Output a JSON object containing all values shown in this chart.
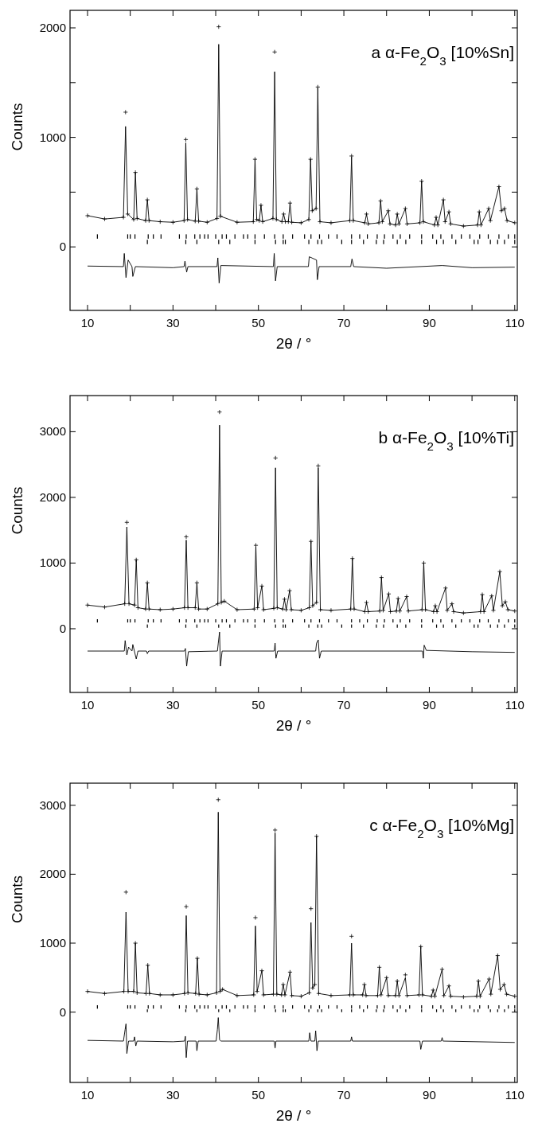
{
  "chart_data": [
    {
      "type": "line",
      "title": "a  α-Fe$_{2}$O$_{3}$ [10%Sn]",
      "xlabel": "2θ / °",
      "ylabel": "Counts",
      "xlim": [
        5.9,
        110.6
      ],
      "ylim": [
        -580,
        2160
      ],
      "xticks": [
        10,
        {
          "value": 20,
          "label": null
        },
        30,
        {
          "value": 40,
          "label": null
        },
        50,
        {
          "value": 60,
          "label": null
        },
        70,
        {
          "value": 80,
          "label": null
        },
        90,
        {
          "value": 100,
          "label": null
        },
        110
      ],
      "yticks": [
        0,
        {
          "value": 500,
          "label": null
        },
        1000,
        {
          "value": 1500,
          "label": null
        },
        2000
      ],
      "x": [
        10,
        14,
        18.4,
        18.9,
        19.4,
        20.8,
        21.2,
        21.6,
        23.6,
        24.0,
        24.4,
        27,
        30,
        32.6,
        33.0,
        33.4,
        35.2,
        35.6,
        36.0,
        38,
        40.3,
        40.7,
        41.1,
        45,
        48.8,
        49.2,
        49.6,
        50.2,
        50.6,
        51,
        53.4,
        53.8,
        54.2,
        55.5,
        55.9,
        56.3,
        57.0,
        57.4,
        57.8,
        60,
        61.8,
        62.2,
        62.6,
        63.5,
        63.9,
        64.4,
        67,
        71.4,
        71.8,
        72.2,
        74.9,
        75.3,
        75.7,
        78.2,
        78.6,
        79.0,
        80.4,
        80.8,
        82.1,
        82.5,
        82.9,
        84.4,
        84.8,
        87.8,
        88.2,
        88.6,
        91.2,
        91.6,
        92.0,
        93.3,
        93.7,
        94.6,
        95.0,
        98,
        101.3,
        101.7,
        102.1,
        103.9,
        104.3,
        106.3,
        106.9,
        107.6,
        108.2,
        110
      ],
      "series": [
        {
          "color": "#000000",
          "values": [
            285,
            255,
            270,
            1100,
            300,
            250,
            680,
            260,
            240,
            430,
            240,
            230,
            225,
            240,
            950,
            250,
            235,
            530,
            235,
            225,
            260,
            1850,
            280,
            225,
            230,
            800,
            250,
            240,
            380,
            230,
            260,
            1600,
            250,
            230,
            300,
            230,
            230,
            400,
            225,
            220,
            250,
            800,
            330,
            350,
            1450,
            230,
            220,
            240,
            820,
            240,
            220,
            300,
            210,
            220,
            420,
            230,
            330,
            210,
            200,
            300,
            210,
            350,
            210,
            220,
            600,
            230,
            200,
            270,
            200,
            430,
            230,
            320,
            210,
            190,
            200,
            320,
            200,
            350,
            240,
            550,
            330,
            350,
            240,
            220
          ]
        },
        {
          "type": "scatter",
          "color": "#000000",
          "marker": "cross",
          "values": [
            285,
            255,
            270,
            1230,
            300,
            250,
            680,
            260,
            240,
            430,
            240,
            230,
            225,
            240,
            980,
            250,
            235,
            530,
            235,
            225,
            260,
            2010,
            280,
            225,
            230,
            800,
            250,
            240,
            380,
            230,
            260,
            1780,
            250,
            230,
            300,
            230,
            230,
            400,
            225,
            220,
            250,
            800,
            330,
            350,
            1460,
            230,
            220,
            240,
            830,
            240,
            220,
            300,
            210,
            220,
            420,
            230,
            330,
            210,
            200,
            300,
            210,
            350,
            210,
            220,
            600,
            230,
            200,
            270,
            200,
            430,
            230,
            320,
            210,
            190,
            200,
            320,
            200,
            350,
            240,
            550,
            330,
            350,
            240,
            220
          ]
        },
        {
          "color": "#000000",
          "x": [
            10,
            18.4,
            18.6,
            19.0,
            19.5,
            20.4,
            20.6,
            21.2,
            30,
            32.6,
            32.8,
            33.2,
            33.5,
            40.3,
            40.5,
            40.8,
            41.2,
            53.5,
            53.7,
            54.0,
            54.4,
            61.7,
            61.9,
            63.6,
            63.8,
            64.2,
            71.6,
            71.9,
            72.3,
            80,
            93,
            100,
            110
          ],
          "values": [
            -175,
            -180,
            -60,
            -280,
            -120,
            -180,
            -270,
            -180,
            -190,
            -180,
            -130,
            -230,
            -180,
            -180,
            -100,
            -330,
            -170,
            -180,
            -60,
            -310,
            -180,
            -180,
            -90,
            -120,
            -300,
            -180,
            -180,
            -110,
            -180,
            -195,
            -170,
            -190,
            -185
          ]
        },
        {
          "type": "bar",
          "color": "#000000",
          "x": [
            12.3,
            19.4,
            20.0,
            21.1,
            24.2,
            25.4,
            27.2,
            31.5,
            33.1,
            35.1,
            36.3,
            37.4,
            38.2,
            40.0,
            41.5,
            42.5,
            44.5,
            46.5,
            47.5,
            49.2,
            51.4,
            53.8,
            55.8,
            58.0,
            60.8,
            62.3,
            64.3,
            66.4,
            68.4,
            71.8,
            73.7,
            75.5,
            77.8,
            79.5,
            81.5,
            83.2,
            85.4,
            88.2,
            90.8,
            92.7,
            95.3,
            97.5,
            99.5,
            101.8,
            103.8,
            106.3,
            108.5,
            110
          ],
          "base": [
            75,
            75,
            75,
            75,
            75,
            75,
            75,
            75,
            75,
            75,
            75,
            75,
            75,
            75,
            75,
            75,
            75,
            75,
            75,
            75,
            75,
            75,
            75,
            75,
            75,
            75,
            75,
            75,
            75,
            75,
            75,
            75,
            75,
            75,
            75,
            75,
            75,
            75,
            75,
            75,
            75,
            75,
            75,
            75,
            75,
            75,
            75,
            75
          ],
          "values": [
            40,
            40,
            40,
            40,
            40,
            40,
            40,
            40,
            40,
            40,
            40,
            40,
            40,
            40,
            40,
            40,
            40,
            40,
            40,
            40,
            40,
            40,
            40,
            40,
            40,
            40,
            40,
            40,
            40,
            40,
            40,
            40,
            40,
            40,
            40,
            40,
            40,
            40,
            40,
            40,
            40,
            40,
            40,
            40,
            40,
            40,
            40,
            40
          ]
        },
        {
          "type": "bar",
          "color": "#000000",
          "x": [
            24.0,
            33.0,
            35.6,
            40.7,
            43.3,
            49.2,
            54.0,
            55.8,
            56.3,
            61.8,
            63.9,
            64.8,
            69.5,
            71.8,
            74.6,
            77.6,
            79.3,
            82.5,
            84.5,
            88.2,
            91.7,
            93.3,
            96.2,
            100.5,
            101.4,
            104.3,
            106.0,
            107.6,
            110
          ],
          "base": [
            25,
            25,
            25,
            25,
            25,
            25,
            25,
            25,
            25,
            25,
            25,
            25,
            25,
            25,
            25,
            25,
            25,
            25,
            25,
            25,
            25,
            25,
            25,
            25,
            25,
            25,
            25,
            25,
            25
          ],
          "values": [
            40,
            40,
            40,
            40,
            40,
            40,
            40,
            40,
            40,
            40,
            40,
            40,
            40,
            40,
            40,
            40,
            40,
            40,
            40,
            40,
            40,
            40,
            40,
            40,
            40,
            40,
            40,
            40,
            40
          ]
        }
      ]
    },
    {
      "type": "line",
      "title": "b  α-Fe$_{2}$O$_{3}$ [10%Ti]",
      "xlabel": "2θ / °",
      "ylabel": "Counts",
      "xlim": [
        5.9,
        110.6
      ],
      "ylim": [
        -970,
        3550
      ],
      "xticks": [
        10,
        {
          "value": 20,
          "label": null
        },
        30,
        {
          "value": 40,
          "label": null
        },
        50,
        {
          "value": 60,
          "label": null
        },
        70,
        {
          "value": 80,
          "label": null
        },
        90,
        {
          "value": 100,
          "label": null
        },
        110
      ],
      "yticks": [
        0,
        1000,
        2000,
        3000
      ],
      "x": [
        10,
        14,
        18.7,
        19.2,
        19.7,
        21.0,
        21.4,
        21.8,
        23.6,
        24.0,
        24.4,
        27,
        30,
        32.7,
        33.1,
        33.5,
        35.2,
        35.6,
        36.0,
        38,
        40.5,
        40.9,
        41.3,
        42,
        45,
        49.0,
        49.4,
        49.8,
        50.8,
        51.2,
        53.6,
        54.0,
        54.4,
        55.7,
        56.1,
        56.5,
        57.3,
        57.7,
        60,
        61.9,
        62.3,
        62.7,
        63.6,
        64.0,
        64.5,
        67,
        71.6,
        72.0,
        72.4,
        74.9,
        75.3,
        75.7,
        78.4,
        78.8,
        79.2,
        80.5,
        80.9,
        82.3,
        82.7,
        83.1,
        84.7,
        85.1,
        88.3,
        88.7,
        89.1,
        91.0,
        91.4,
        91.8,
        93.8,
        94.2,
        95.3,
        95.7,
        98,
        102.0,
        102.4,
        102.8,
        104.6,
        105.0,
        106.5,
        107.1,
        107.8,
        108.4,
        110
      ],
      "series": [
        {
          "color": "#000000",
          "values": [
            360,
            330,
            380,
            1550,
            380,
            360,
            1050,
            320,
            300,
            700,
            300,
            290,
            300,
            320,
            1350,
            320,
            320,
            700,
            300,
            300,
            380,
            3100,
            400,
            420,
            290,
            300,
            1250,
            320,
            650,
            290,
            310,
            2450,
            320,
            300,
            450,
            290,
            580,
            290,
            280,
            320,
            1330,
            350,
            400,
            2450,
            290,
            280,
            300,
            1070,
            300,
            260,
            400,
            260,
            270,
            780,
            280,
            530,
            260,
            270,
            460,
            270,
            490,
            270,
            290,
            1000,
            290,
            260,
            350,
            260,
            620,
            280,
            380,
            260,
            240,
            260,
            520,
            260,
            500,
            280,
            870,
            350,
            410,
            290,
            270
          ]
        },
        {
          "type": "scatter",
          "color": "#000000",
          "marker": "cross",
          "values": [
            360,
            330,
            380,
            1620,
            380,
            360,
            1050,
            320,
            300,
            700,
            300,
            290,
            300,
            320,
            1400,
            320,
            320,
            700,
            300,
            300,
            380,
            3300,
            400,
            420,
            290,
            300,
            1270,
            320,
            650,
            290,
            310,
            2600,
            320,
            300,
            450,
            290,
            580,
            290,
            280,
            320,
            1330,
            350,
            400,
            2480,
            290,
            280,
            300,
            1070,
            300,
            260,
            400,
            260,
            270,
            780,
            280,
            530,
            260,
            270,
            460,
            270,
            490,
            270,
            290,
            1000,
            290,
            260,
            350,
            260,
            620,
            280,
            380,
            260,
            240,
            260,
            520,
            260,
            500,
            280,
            870,
            350,
            410,
            290,
            270
          ]
        },
        {
          "color": "#000000",
          "x": [
            10,
            18.6,
            18.8,
            19.2,
            19.6,
            20.4,
            20.6,
            21.4,
            21.8,
            23.8,
            24.0,
            24.3,
            32.7,
            32.9,
            33.2,
            33.6,
            40.4,
            40.6,
            40.9,
            41.1,
            41.5,
            53.7,
            53.9,
            54.1,
            54.5,
            63.4,
            63.6,
            64.0,
            64.3,
            64.7,
            88.4,
            88.6,
            88.8,
            89.3,
            100,
            110
          ],
          "values": [
            -340,
            -340,
            -180,
            -400,
            -280,
            -340,
            -240,
            -460,
            -340,
            -340,
            -380,
            -340,
            -340,
            -300,
            -570,
            -350,
            -340,
            -220,
            -50,
            -570,
            -340,
            -340,
            -220,
            -450,
            -340,
            -340,
            -220,
            -170,
            -450,
            -340,
            -340,
            -450,
            -250,
            -330,
            -350,
            -360
          ]
        },
        {
          "type": "bar",
          "color": "#000000",
          "x": [
            12.3,
            19.4,
            20.0,
            21.1,
            24.2,
            25.4,
            27.2,
            31.5,
            33.1,
            35.1,
            36.3,
            37.4,
            38.2,
            40.0,
            41.5,
            42.5,
            44.5,
            46.5,
            47.5,
            49.2,
            51.4,
            53.8,
            55.8,
            58.0,
            60.8,
            62.3,
            64.3,
            66.4,
            68.4,
            71.8,
            73.7,
            75.5,
            77.8,
            79.5,
            81.5,
            83.2,
            85.4,
            88.2,
            90.8,
            92.7,
            95.3,
            97.5,
            99.5,
            101.8,
            103.8,
            106.3,
            108.5,
            110
          ],
          "base": [
            95,
            95,
            95,
            95,
            95,
            95,
            95,
            95,
            95,
            95,
            95,
            95,
            95,
            95,
            95,
            95,
            95,
            95,
            95,
            95,
            95,
            95,
            95,
            95,
            95,
            95,
            95,
            95,
            95,
            95,
            95,
            95,
            95,
            95,
            95,
            95,
            95,
            95,
            95,
            95,
            95,
            95,
            95,
            95,
            95,
            95,
            95,
            95
          ],
          "values": [
            50,
            50,
            50,
            50,
            50,
            50,
            50,
            50,
            50,
            50,
            50,
            50,
            50,
            50,
            50,
            50,
            50,
            50,
            50,
            50,
            50,
            50,
            50,
            50,
            50,
            50,
            50,
            50,
            50,
            50,
            50,
            50,
            50,
            50,
            50,
            50,
            50,
            50,
            50,
            50,
            50,
            50,
            50,
            50,
            50,
            50,
            50,
            50
          ]
        },
        {
          "type": "bar",
          "color": "#000000",
          "x": [
            24.0,
            33.0,
            35.6,
            40.7,
            43.3,
            49.2,
            54.0,
            55.8,
            56.3,
            61.8,
            63.9,
            64.8,
            69.5,
            71.8,
            74.6,
            77.6,
            79.3,
            82.5,
            84.5,
            88.2,
            91.7,
            93.3,
            96.2,
            100.5,
            101.4,
            104.3,
            106.0,
            107.6,
            110
          ],
          "base": [
            15,
            15,
            15,
            15,
            15,
            15,
            15,
            15,
            15,
            15,
            15,
            15,
            15,
            15,
            15,
            15,
            15,
            15,
            15,
            15,
            15,
            15,
            15,
            15,
            15,
            15,
            15,
            15,
            15
          ],
          "values": [
            50,
            50,
            50,
            50,
            50,
            50,
            50,
            50,
            50,
            50,
            50,
            50,
            50,
            50,
            50,
            50,
            50,
            50,
            50,
            50,
            50,
            50,
            50,
            50,
            50,
            50,
            50,
            50,
            50
          ]
        }
      ]
    },
    {
      "type": "line",
      "title": "c  α-Fe$_{2}$O$_{3}$ [10%Mg]",
      "xlabel": "2θ / °",
      "ylabel": "Counts",
      "xlim": [
        5.9,
        110.6
      ],
      "ylim": [
        -1020,
        3320
      ],
      "xticks": [
        10,
        {
          "value": 20,
          "label": null
        },
        30,
        {
          "value": 40,
          "label": null
        },
        50,
        {
          "value": 60,
          "label": null
        },
        70,
        {
          "value": 80,
          "label": null
        },
        90,
        {
          "value": 100,
          "label": null
        },
        110
      ],
      "yticks": [
        0,
        1000,
        2000,
        3000
      ],
      "x": [
        10,
        14,
        18.5,
        19.0,
        19.5,
        20.8,
        21.2,
        21.6,
        23.7,
        24.1,
        24.5,
        27,
        30,
        32.7,
        33.1,
        33.5,
        35.3,
        35.7,
        36.1,
        38,
        40.2,
        40.6,
        41.0,
        41.6,
        45,
        48.9,
        49.3,
        49.7,
        50.8,
        51.2,
        53.5,
        53.9,
        54.3,
        55.4,
        55.8,
        56.2,
        57.4,
        57.8,
        60,
        61.9,
        62.3,
        62.7,
        63.2,
        63.6,
        64.1,
        67,
        71.4,
        71.8,
        72.2,
        74.4,
        74.8,
        75.2,
        77.9,
        78.3,
        78.7,
        80.0,
        80.4,
        82.1,
        82.5,
        82.9,
        84.4,
        84.8,
        87.6,
        88.0,
        88.4,
        90.5,
        90.9,
        91.3,
        93.0,
        93.4,
        94.6,
        95.0,
        98,
        101.1,
        101.5,
        101.9,
        104.0,
        104.4,
        106.0,
        106.6,
        107.5,
        108.1,
        110
      ],
      "series": [
        {
          "color": "#000000",
          "values": [
            300,
            270,
            300,
            1450,
            300,
            300,
            1000,
            280,
            270,
            680,
            270,
            250,
            250,
            270,
            1400,
            280,
            270,
            780,
            260,
            250,
            280,
            2900,
            300,
            330,
            240,
            250,
            1250,
            300,
            600,
            250,
            260,
            2600,
            260,
            250,
            400,
            250,
            580,
            240,
            230,
            280,
            1300,
            350,
            400,
            2550,
            270,
            240,
            250,
            1000,
            250,
            250,
            400,
            240,
            240,
            650,
            250,
            500,
            240,
            240,
            450,
            240,
            500,
            240,
            250,
            950,
            250,
            230,
            320,
            230,
            620,
            240,
            380,
            230,
            220,
            230,
            450,
            230,
            480,
            260,
            820,
            330,
            400,
            260,
            230
          ]
        },
        {
          "type": "scatter",
          "color": "#000000",
          "marker": "cross",
          "values": [
            300,
            270,
            300,
            1740,
            300,
            300,
            1000,
            280,
            270,
            680,
            270,
            250,
            250,
            270,
            1530,
            280,
            270,
            780,
            260,
            250,
            280,
            3080,
            300,
            330,
            240,
            250,
            1370,
            300,
            600,
            250,
            260,
            2640,
            260,
            250,
            400,
            250,
            580,
            240,
            230,
            280,
            1500,
            350,
            400,
            2550,
            270,
            240,
            250,
            1100,
            250,
            250,
            400,
            240,
            240,
            650,
            250,
            500,
            240,
            240,
            450,
            240,
            540,
            240,
            250,
            950,
            250,
            230,
            320,
            230,
            620,
            240,
            380,
            230,
            220,
            230,
            450,
            230,
            480,
            260,
            820,
            330,
            400,
            260,
            230
          ]
        },
        {
          "color": "#000000",
          "x": [
            10,
            18.4,
            18.8,
            19.0,
            19.2,
            19.6,
            20.8,
            21.0,
            21.3,
            21.6,
            30,
            32.7,
            32.9,
            33.1,
            33.4,
            35.4,
            35.6,
            35.9,
            40.1,
            40.4,
            40.6,
            40.9,
            41.2,
            53.7,
            53.9,
            54.1,
            61.8,
            62.0,
            62.3,
            63.2,
            63.4,
            63.7,
            64.0,
            71.6,
            71.8,
            72.0,
            87.8,
            88.0,
            88.4,
            92.8,
            93.0,
            93.2,
            110
          ],
          "values": [
            -410,
            -420,
            -250,
            -170,
            -600,
            -420,
            -420,
            -360,
            -490,
            -420,
            -430,
            -420,
            -350,
            -660,
            -420,
            -420,
            -560,
            -420,
            -420,
            -250,
            -80,
            -400,
            -420,
            -420,
            -520,
            -420,
            -420,
            -300,
            -420,
            -420,
            -270,
            -560,
            -420,
            -420,
            -360,
            -420,
            -420,
            -540,
            -420,
            -420,
            -370,
            -420,
            -440
          ]
        },
        {
          "type": "bar",
          "color": "#000000",
          "x": [
            12.3,
            19.4,
            20.0,
            21.1,
            24.2,
            25.4,
            27.2,
            31.5,
            33.1,
            35.1,
            36.3,
            37.4,
            38.2,
            40.0,
            41.5,
            42.5,
            44.5,
            46.5,
            47.5,
            49.2,
            51.4,
            53.8,
            55.8,
            58.0,
            60.8,
            62.3,
            64.3,
            66.4,
            68.4,
            71.8,
            73.7,
            75.5,
            77.8,
            79.5,
            81.5,
            83.2,
            85.4,
            88.2,
            90.8,
            92.7,
            95.3,
            97.5,
            99.5,
            101.8,
            103.8,
            106.3,
            108.5,
            110
          ],
          "base": [
            50,
            50,
            50,
            50,
            50,
            50,
            50,
            50,
            50,
            50,
            50,
            50,
            50,
            50,
            50,
            50,
            50,
            50,
            50,
            50,
            50,
            50,
            50,
            50,
            50,
            50,
            50,
            50,
            50,
            50,
            50,
            50,
            50,
            50,
            50,
            50,
            50,
            50,
            50,
            50,
            50,
            50,
            50,
            50,
            50,
            50,
            50,
            50
          ],
          "values": [
            50,
            50,
            50,
            50,
            50,
            50,
            50,
            50,
            50,
            50,
            50,
            50,
            50,
            50,
            50,
            50,
            50,
            50,
            50,
            50,
            50,
            50,
            50,
            50,
            50,
            50,
            50,
            50,
            50,
            50,
            50,
            50,
            50,
            50,
            50,
            50,
            50,
            50,
            50,
            50,
            50,
            50,
            50,
            50,
            50,
            50,
            50,
            50
          ]
        },
        {
          "type": "bar",
          "color": "#000000",
          "x": [
            24.0,
            33.0,
            35.6,
            40.7,
            43.3,
            49.2,
            54.0,
            55.8,
            56.3,
            61.8,
            63.9,
            64.8,
            69.5,
            71.8,
            74.6,
            77.6,
            79.3,
            82.5,
            84.5,
            88.2,
            91.7,
            93.3,
            96.2,
            100.5,
            101.4,
            104.3,
            106.0,
            107.6,
            110
          ],
          "base": [
            0,
            0,
            0,
            0,
            0,
            0,
            0,
            0,
            0,
            0,
            0,
            0,
            0,
            0,
            0,
            0,
            0,
            0,
            0,
            0,
            0,
            0,
            0,
            0,
            0,
            0,
            0,
            0,
            0
          ],
          "values": [
            40,
            40,
            40,
            40,
            40,
            40,
            40,
            40,
            40,
            40,
            40,
            40,
            40,
            40,
            40,
            40,
            40,
            40,
            40,
            40,
            40,
            40,
            40,
            40,
            40,
            40,
            40,
            40,
            40
          ]
        }
      ]
    }
  ]
}
